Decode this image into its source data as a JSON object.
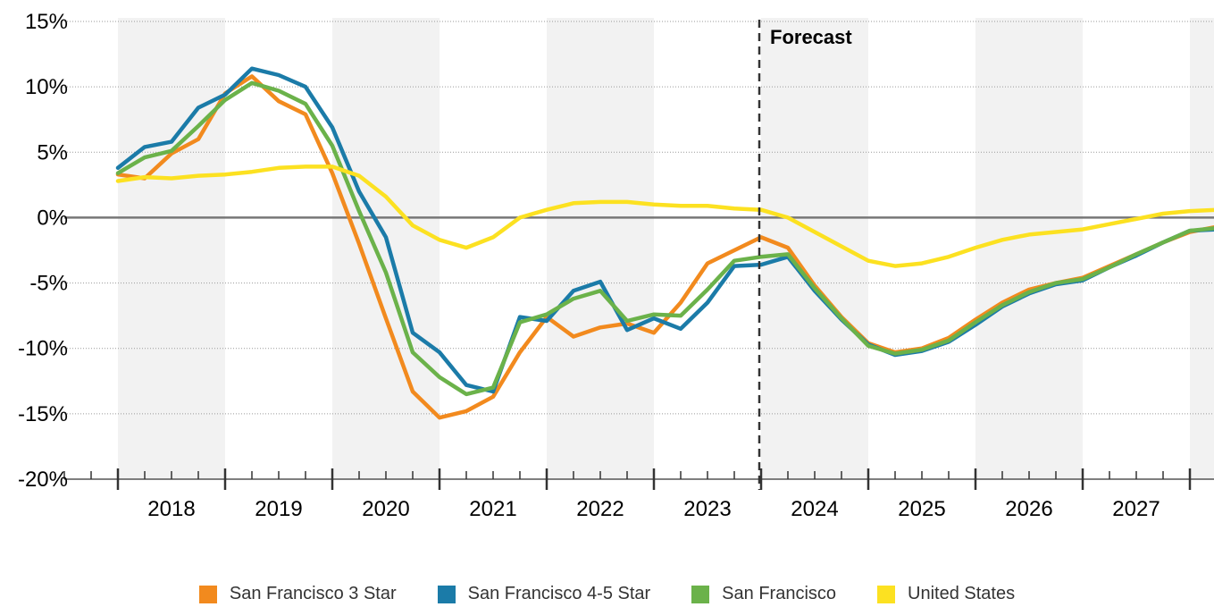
{
  "chart_data": {
    "type": "line",
    "title": "",
    "xlabel": "",
    "ylabel": "",
    "ylim": [
      -20,
      15
    ],
    "yticks": [
      15,
      10,
      5,
      0,
      -5,
      -10,
      -15,
      -20
    ],
    "ytick_labels": [
      "15%",
      "10%",
      "5%",
      "0%",
      "-5%",
      "-10%",
      "-15%",
      "-20%"
    ],
    "x_range": [
      2017.5,
      2027.9
    ],
    "year_labels": [
      "2018",
      "2019",
      "2020",
      "2021",
      "2022",
      "2023",
      "2024",
      "2025",
      "2026",
      "2027"
    ],
    "forecast_x": 2023.5,
    "forecast_label": "Forecast",
    "grid": "horizontal dotted, alternating year shading",
    "legend_position": "bottom",
    "series": [
      {
        "name": "San Francisco 3 Star",
        "color": "#F28A1E",
        "x": [
          2017.5,
          2017.75,
          2018.0,
          2018.25,
          2018.5,
          2018.75,
          2019.0,
          2019.25,
          2019.5,
          2019.75,
          2020.0,
          2020.25,
          2020.5,
          2020.75,
          2021.0,
          2021.25,
          2021.5,
          2021.75,
          2022.0,
          2022.25,
          2022.5,
          2022.75,
          2023.0,
          2023.25,
          2023.5,
          2023.75,
          2024.0,
          2024.25,
          2024.5,
          2024.75,
          2025.0,
          2025.25,
          2025.5,
          2025.75,
          2026.0,
          2026.25,
          2026.5,
          2026.75,
          2027.0,
          2027.25,
          2027.5,
          2027.75
        ],
        "values": [
          3.3,
          3.0,
          4.9,
          6.0,
          9.5,
          10.8,
          8.9,
          7.9,
          3.4,
          -2.0,
          -7.7,
          -13.3,
          -15.3,
          -14.8,
          -13.7,
          -10.3,
          -7.6,
          -9.1,
          -8.4,
          -8.1,
          -8.8,
          -6.5,
          -3.5,
          -2.5,
          -1.5,
          -2.3,
          -5.2,
          -7.6,
          -9.6,
          -10.3,
          -10.0,
          -9.2,
          -7.8,
          -6.5,
          -5.5,
          -5.0,
          -4.6,
          -3.7,
          -2.8,
          -1.9,
          -1.1,
          -0.7
        ]
      },
      {
        "name": "San Francisco 4-5 Star",
        "color": "#1B7BA8",
        "x": [
          2017.5,
          2017.75,
          2018.0,
          2018.25,
          2018.5,
          2018.75,
          2019.0,
          2019.25,
          2019.5,
          2019.75,
          2020.0,
          2020.25,
          2020.5,
          2020.75,
          2021.0,
          2021.25,
          2021.5,
          2021.75,
          2022.0,
          2022.25,
          2022.5,
          2022.75,
          2023.0,
          2023.25,
          2023.5,
          2023.75,
          2024.0,
          2024.25,
          2024.5,
          2024.75,
          2025.0,
          2025.25,
          2025.5,
          2025.75,
          2026.0,
          2026.25,
          2026.5,
          2026.75,
          2027.0,
          2027.25,
          2027.5,
          2027.75
        ],
        "values": [
          3.8,
          5.4,
          5.8,
          8.4,
          9.4,
          11.4,
          10.9,
          10.0,
          6.9,
          2.0,
          -1.5,
          -8.8,
          -10.3,
          -12.8,
          -13.3,
          -7.6,
          -7.9,
          -5.6,
          -4.9,
          -8.6,
          -7.7,
          -8.5,
          -6.5,
          -3.7,
          -3.6,
          -3.0,
          -5.6,
          -7.8,
          -9.7,
          -10.5,
          -10.2,
          -9.5,
          -8.2,
          -6.8,
          -5.8,
          -5.1,
          -4.8,
          -3.8,
          -2.9,
          -1.9,
          -1.0,
          -0.9
        ]
      },
      {
        "name": "San Francisco",
        "color": "#6BB24A",
        "x": [
          2017.5,
          2017.75,
          2018.0,
          2018.25,
          2018.5,
          2018.75,
          2019.0,
          2019.25,
          2019.5,
          2019.75,
          2020.0,
          2020.25,
          2020.5,
          2020.75,
          2021.0,
          2021.25,
          2021.5,
          2021.75,
          2022.0,
          2022.25,
          2022.5,
          2022.75,
          2023.0,
          2023.25,
          2023.5,
          2023.75,
          2024.0,
          2024.25,
          2024.5,
          2024.75,
          2025.0,
          2025.25,
          2025.5,
          2025.75,
          2026.0,
          2026.25,
          2026.5,
          2026.75,
          2027.0,
          2027.25,
          2027.5,
          2027.75
        ],
        "values": [
          3.4,
          4.6,
          5.1,
          7.0,
          9.0,
          10.3,
          9.7,
          8.7,
          5.5,
          0.5,
          -4.2,
          -10.3,
          -12.2,
          -13.5,
          -13.0,
          -8.0,
          -7.4,
          -6.2,
          -5.6,
          -7.9,
          -7.4,
          -7.5,
          -5.5,
          -3.3,
          -3.0,
          -2.8,
          -5.4,
          -7.7,
          -9.8,
          -10.4,
          -10.1,
          -9.4,
          -8.0,
          -6.7,
          -5.7,
          -5.0,
          -4.7,
          -3.8,
          -2.8,
          -1.9,
          -1.0,
          -0.8
        ]
      },
      {
        "name": "United States",
        "color": "#FCE121",
        "x": [
          2017.5,
          2017.75,
          2018.0,
          2018.25,
          2018.5,
          2018.75,
          2019.0,
          2019.25,
          2019.5,
          2019.75,
          2020.0,
          2020.25,
          2020.5,
          2020.75,
          2021.0,
          2021.25,
          2021.5,
          2021.75,
          2022.0,
          2022.25,
          2022.5,
          2022.75,
          2023.0,
          2023.25,
          2023.5,
          2023.75,
          2024.0,
          2024.25,
          2024.5,
          2024.75,
          2025.0,
          2025.25,
          2025.5,
          2025.75,
          2026.0,
          2026.25,
          2026.5,
          2026.75,
          2027.0,
          2027.25,
          2027.5,
          2027.75
        ],
        "values": [
          2.8,
          3.1,
          3.0,
          3.2,
          3.3,
          3.5,
          3.8,
          3.9,
          3.9,
          3.2,
          1.6,
          -0.6,
          -1.7,
          -2.3,
          -1.5,
          0.0,
          0.6,
          1.1,
          1.2,
          1.2,
          1.0,
          0.9,
          0.9,
          0.7,
          0.6,
          0.0,
          -1.1,
          -2.2,
          -3.3,
          -3.7,
          -3.5,
          -3.0,
          -2.3,
          -1.7,
          -1.3,
          -1.1,
          -0.9,
          -0.5,
          -0.1,
          0.3,
          0.5,
          0.6
        ]
      }
    ]
  }
}
